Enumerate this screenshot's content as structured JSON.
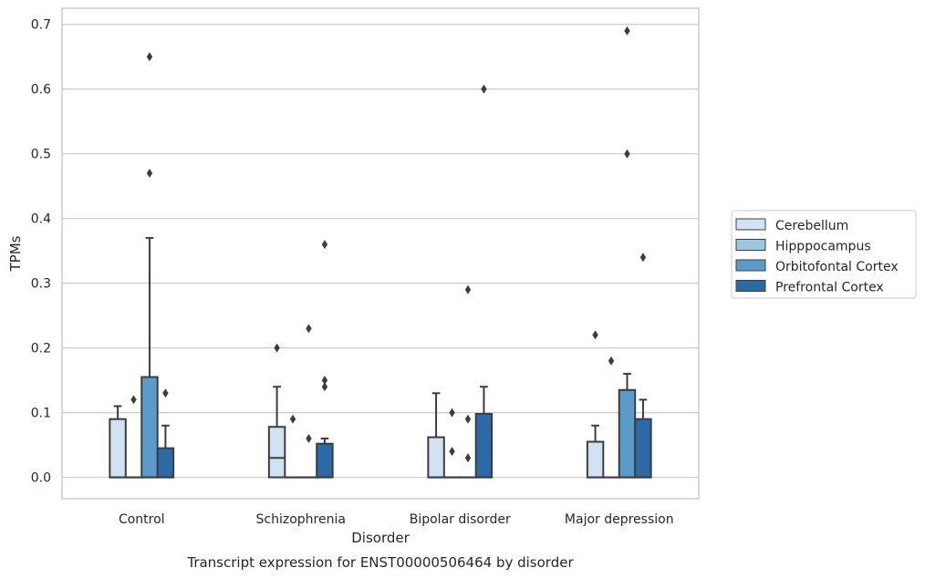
{
  "chart_data": {
    "type": "box",
    "title": "",
    "caption": "Transcript expression for ENST00000506464 by disorder",
    "xlabel": "Disorder",
    "ylabel": "TPMs",
    "ylim": [
      -0.033,
      0.725
    ],
    "yticks": [
      0.0,
      0.1,
      0.2,
      0.3,
      0.4,
      0.5,
      0.6,
      0.7
    ],
    "ytick_labels": [
      "0.0",
      "0.1",
      "0.2",
      "0.3",
      "0.4",
      "0.5",
      "0.6",
      "0.7"
    ],
    "grid": "horizontal",
    "legend_position": "right",
    "categories": [
      "Control",
      "Schizophrenia",
      "Bipolar disorder",
      "Major depression"
    ],
    "series": [
      {
        "name": "Cerebellum",
        "color": "#d1e2f2",
        "boxes": [
          {
            "q1": 0.0,
            "median": 0.0,
            "q3": 0.09,
            "whisker_low": 0.0,
            "whisker_high": 0.11,
            "outliers": []
          },
          {
            "q1": 0.0,
            "median": 0.03,
            "q3": 0.078,
            "whisker_low": 0.0,
            "whisker_high": 0.14,
            "outliers": [
              0.2
            ]
          },
          {
            "q1": 0.0,
            "median": 0.0,
            "q3": 0.062,
            "whisker_low": 0.0,
            "whisker_high": 0.13,
            "outliers": []
          },
          {
            "q1": 0.0,
            "median": 0.0,
            "q3": 0.055,
            "whisker_low": 0.0,
            "whisker_high": 0.08,
            "outliers": [
              0.22
            ]
          }
        ]
      },
      {
        "name": "Hipppocampus",
        "color": "#9ac8e0",
        "boxes": [
          {
            "q1": 0.0,
            "median": 0.0,
            "q3": 0.0,
            "whisker_low": 0.0,
            "whisker_high": 0.0,
            "outliers": [
              0.12
            ]
          },
          {
            "q1": 0.0,
            "median": 0.0,
            "q3": 0.0,
            "whisker_low": 0.0,
            "whisker_high": 0.0,
            "outliers": [
              0.09
            ]
          },
          {
            "q1": 0.0,
            "median": 0.0,
            "q3": 0.0,
            "whisker_low": 0.0,
            "whisker_high": 0.0,
            "outliers": [
              0.1,
              0.04
            ]
          },
          {
            "q1": 0.0,
            "median": 0.0,
            "q3": 0.0,
            "whisker_low": 0.0,
            "whisker_high": 0.0,
            "outliers": [
              0.18
            ]
          }
        ]
      },
      {
        "name": "Orbitofontal Cortex",
        "color": "#5b9bc9",
        "boxes": [
          {
            "q1": 0.0,
            "median": 0.0,
            "q3": 0.155,
            "whisker_low": 0.0,
            "whisker_high": 0.37,
            "outliers": [
              0.65,
              0.47
            ]
          },
          {
            "q1": 0.0,
            "median": 0.0,
            "q3": 0.0,
            "whisker_low": 0.0,
            "whisker_high": 0.0,
            "outliers": [
              0.23,
              0.06
            ]
          },
          {
            "q1": 0.0,
            "median": 0.0,
            "q3": 0.0,
            "whisker_low": 0.0,
            "whisker_high": 0.0,
            "outliers": [
              0.29,
              0.09,
              0.03
            ]
          },
          {
            "q1": 0.0,
            "median": 0.0,
            "q3": 0.135,
            "whisker_low": 0.0,
            "whisker_high": 0.16,
            "outliers": [
              0.69,
              0.5
            ]
          }
        ]
      },
      {
        "name": "Prefrontal Cortex",
        "color": "#2b6aa6",
        "boxes": [
          {
            "q1": 0.0,
            "median": 0.0,
            "q3": 0.045,
            "whisker_low": 0.0,
            "whisker_high": 0.08,
            "outliers": [
              0.13
            ]
          },
          {
            "q1": 0.0,
            "median": 0.0,
            "q3": 0.052,
            "whisker_low": 0.0,
            "whisker_high": 0.06,
            "outliers": [
              0.36,
              0.15,
              0.14
            ]
          },
          {
            "q1": 0.0,
            "median": 0.0,
            "q3": 0.098,
            "whisker_low": 0.0,
            "whisker_high": 0.14,
            "outliers": [
              0.6
            ]
          },
          {
            "q1": 0.0,
            "median": 0.0,
            "q3": 0.09,
            "whisker_low": 0.0,
            "whisker_high": 0.12,
            "outliers": [
              0.34
            ]
          }
        ]
      }
    ]
  }
}
